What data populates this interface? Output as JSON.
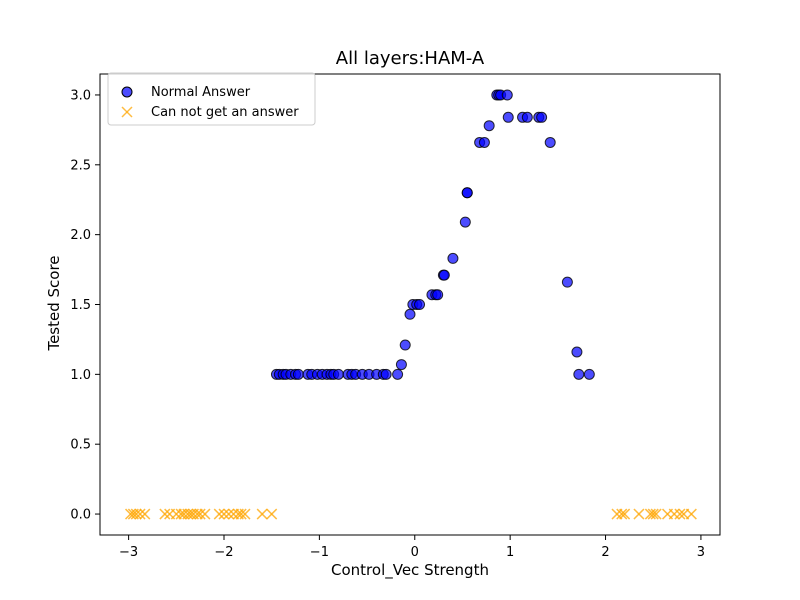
{
  "chart_data": {
    "type": "scatter",
    "title": "All layers:HAM-A",
    "xlabel": "Control_Vec Strength",
    "ylabel": "Tested Score",
    "xlim": [
      -3.3,
      3.2
    ],
    "ylim": [
      -0.15,
      3.15
    ],
    "xticks": [
      -3,
      -2,
      -1,
      0,
      1,
      2,
      3
    ],
    "xtick_labels": [
      "−3",
      "−2",
      "−1",
      "0",
      "1",
      "2",
      "3"
    ],
    "yticks": [
      0.0,
      0.5,
      1.0,
      1.5,
      2.0,
      2.5,
      3.0
    ],
    "ytick_labels": [
      "0.0",
      "0.5",
      "1.0",
      "1.5",
      "2.0",
      "2.5",
      "3.0"
    ],
    "grid": false,
    "legend_position": "top-left",
    "series": [
      {
        "name": "Normal Answer",
        "marker": "circle",
        "color": "#0000ff",
        "edge_color": "#000000",
        "points": [
          [
            -1.45,
            1.0
          ],
          [
            -1.42,
            1.0
          ],
          [
            -1.38,
            1.0
          ],
          [
            -1.35,
            1.0
          ],
          [
            -1.3,
            1.0
          ],
          [
            -1.25,
            1.0
          ],
          [
            -1.22,
            1.0
          ],
          [
            -1.12,
            1.0
          ],
          [
            -1.08,
            1.0
          ],
          [
            -1.02,
            1.0
          ],
          [
            -0.97,
            1.0
          ],
          [
            -0.92,
            1.0
          ],
          [
            -0.88,
            1.0
          ],
          [
            -0.85,
            1.0
          ],
          [
            -0.8,
            1.0
          ],
          [
            -0.7,
            1.0
          ],
          [
            -0.66,
            1.0
          ],
          [
            -0.62,
            1.0
          ],
          [
            -0.55,
            1.0
          ],
          [
            -0.48,
            1.0
          ],
          [
            -0.4,
            1.0
          ],
          [
            -0.33,
            1.0
          ],
          [
            -0.3,
            1.0
          ],
          [
            -0.18,
            1.0
          ],
          [
            -0.14,
            1.07
          ],
          [
            -0.1,
            1.21
          ],
          [
            -0.05,
            1.43
          ],
          [
            -0.02,
            1.5
          ],
          [
            0.02,
            1.5
          ],
          [
            0.05,
            1.5
          ],
          [
            0.18,
            1.57
          ],
          [
            0.22,
            1.57
          ],
          [
            0.24,
            1.57
          ],
          [
            0.3,
            1.71
          ],
          [
            0.31,
            1.71
          ],
          [
            0.4,
            1.83
          ],
          [
            0.53,
            2.09
          ],
          [
            0.55,
            2.3
          ],
          [
            0.55,
            2.3
          ],
          [
            0.68,
            2.66
          ],
          [
            0.73,
            2.66
          ],
          [
            0.78,
            2.78
          ],
          [
            0.86,
            3.0
          ],
          [
            0.88,
            3.0
          ],
          [
            0.9,
            3.0
          ],
          [
            0.97,
            3.0
          ],
          [
            0.98,
            2.84
          ],
          [
            1.13,
            2.84
          ],
          [
            1.18,
            2.84
          ],
          [
            1.3,
            2.84
          ],
          [
            1.33,
            2.84
          ],
          [
            1.42,
            2.66
          ],
          [
            1.6,
            1.66
          ],
          [
            1.7,
            1.16
          ],
          [
            1.72,
            1.0
          ],
          [
            1.83,
            1.0
          ]
        ]
      },
      {
        "name": "Can not get an answer",
        "marker": "x",
        "color": "#ffa500",
        "points": [
          [
            -2.98,
            0.0
          ],
          [
            -2.95,
            0.0
          ],
          [
            -2.92,
            0.0
          ],
          [
            -2.88,
            0.0
          ],
          [
            -2.83,
            0.0
          ],
          [
            -2.62,
            0.0
          ],
          [
            -2.57,
            0.0
          ],
          [
            -2.5,
            0.0
          ],
          [
            -2.45,
            0.0
          ],
          [
            -2.42,
            0.0
          ],
          [
            -2.38,
            0.0
          ],
          [
            -2.35,
            0.0
          ],
          [
            -2.32,
            0.0
          ],
          [
            -2.28,
            0.0
          ],
          [
            -2.25,
            0.0
          ],
          [
            -2.2,
            0.0
          ],
          [
            -2.05,
            0.0
          ],
          [
            -2.0,
            0.0
          ],
          [
            -1.95,
            0.0
          ],
          [
            -1.9,
            0.0
          ],
          [
            -1.85,
            0.0
          ],
          [
            -1.82,
            0.0
          ],
          [
            -1.78,
            0.0
          ],
          [
            -1.6,
            0.0
          ],
          [
            -1.5,
            0.0
          ],
          [
            2.12,
            0.0
          ],
          [
            2.17,
            0.0
          ],
          [
            2.2,
            0.0
          ],
          [
            2.35,
            0.0
          ],
          [
            2.47,
            0.0
          ],
          [
            2.5,
            0.0
          ],
          [
            2.53,
            0.0
          ],
          [
            2.65,
            0.0
          ],
          [
            2.72,
            0.0
          ],
          [
            2.78,
            0.0
          ],
          [
            2.82,
            0.0
          ],
          [
            2.9,
            0.0
          ]
        ]
      }
    ]
  }
}
